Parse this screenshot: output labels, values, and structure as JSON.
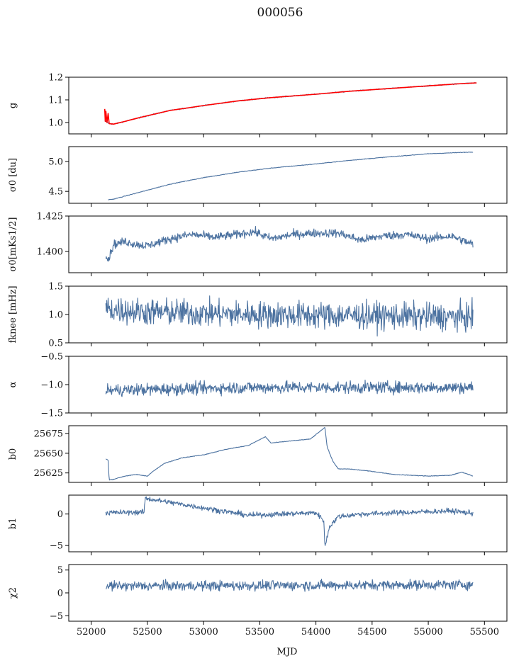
{
  "title": "000056",
  "xlabel": "MJD",
  "colors": {
    "series": "#4c72a0",
    "model": "#ff0000",
    "axes": "#000000"
  },
  "chart_data": [
    {
      "type": "line",
      "ylabel": "g",
      "ylim": [
        0.95,
        1.2
      ],
      "yticks": [
        1.0,
        1.1,
        1.2
      ],
      "ytick_labels": [
        "1.0",
        "1.1",
        "1.2"
      ],
      "xlim": [
        51800,
        55700
      ],
      "series": [
        {
          "color": "#4c72a0",
          "x": [
            52120,
            52160,
            52200,
            52300,
            52400,
            52500,
            52700,
            53000,
            53300,
            53600,
            54000,
            54300,
            54600,
            55000,
            55300,
            55430
          ],
          "y": [
            1.01,
            0.995,
            0.993,
            1.005,
            1.018,
            1.03,
            1.053,
            1.075,
            1.095,
            1.11,
            1.125,
            1.138,
            1.148,
            1.162,
            1.172,
            1.175
          ]
        },
        {
          "color": "#ff0000",
          "x": [
            52120,
            52125,
            52130,
            52140,
            52150,
            52160,
            52200,
            52300,
            52400,
            52500,
            52700,
            53000,
            53300,
            53600,
            54000,
            54300,
            54600,
            55000,
            55300,
            55430
          ],
          "y": [
            1.06,
            1.005,
            1.05,
            1.0,
            1.04,
            0.995,
            0.993,
            1.005,
            1.018,
            1.03,
            1.053,
            1.075,
            1.095,
            1.11,
            1.125,
            1.138,
            1.148,
            1.162,
            1.172,
            1.175
          ]
        }
      ]
    },
    {
      "type": "line",
      "ylabel": "σ0 [du]",
      "ylim": [
        4.3,
        5.25
      ],
      "yticks": [
        4.5,
        5.0
      ],
      "ytick_labels": [
        "4.5",
        "5.0"
      ],
      "xlim": [
        51800,
        55700
      ],
      "series": [
        {
          "color": "#4c72a0",
          "x": [
            52150,
            52200,
            52300,
            52400,
            52500,
            52700,
            53000,
            53300,
            53600,
            54000,
            54300,
            54600,
            55000,
            55400
          ],
          "y": [
            4.36,
            4.37,
            4.42,
            4.47,
            4.52,
            4.62,
            4.73,
            4.82,
            4.89,
            4.96,
            5.02,
            5.07,
            5.13,
            5.16
          ]
        }
      ]
    },
    {
      "type": "line",
      "ylabel": "σ0[mKs1/2]",
      "ylim": [
        1.385,
        1.425
      ],
      "yticks": [
        1.4,
        1.425
      ],
      "ytick_labels": [
        "1.400",
        "1.425"
      ],
      "xlim": [
        51800,
        55700
      ],
      "series": [
        {
          "color": "#4c72a0",
          "x": [
            52130,
            52150,
            52200,
            52300,
            52400,
            52500,
            52700,
            52900,
            53100,
            53300,
            53450,
            53600,
            53800,
            54000,
            54200,
            54400,
            54600,
            54800,
            55000,
            55200,
            55400
          ],
          "y": [
            1.398,
            1.394,
            1.405,
            1.407,
            1.405,
            1.404,
            1.409,
            1.412,
            1.41,
            1.412,
            1.414,
            1.409,
            1.412,
            1.413,
            1.413,
            1.408,
            1.411,
            1.412,
            1.409,
            1.411,
            1.405
          ]
        }
      ]
    },
    {
      "type": "line",
      "ylabel": "fknee [mHz]",
      "ylim": [
        0.5,
        1.5
      ],
      "yticks": [
        0.5,
        1.0,
        1.5
      ],
      "ytick_labels": [
        "0.5",
        "1.0",
        "1.5"
      ],
      "xlim": [
        51800,
        55700
      ],
      "series": [
        {
          "color": "#4c72a0",
          "x": [
            52130,
            52420,
            53400,
            54400,
            55400
          ],
          "y": [
            1.1,
            1.05,
            1.0,
            0.98,
            0.95
          ]
        }
      ]
    },
    {
      "type": "line",
      "ylabel": "α",
      "ylim": [
        -1.5,
        -0.5
      ],
      "yticks": [
        -1.5,
        -1.0,
        -0.5
      ],
      "ytick_labels": [
        "−1.5",
        "−1.0",
        "−0.5"
      ],
      "xlim": [
        51800,
        55700
      ],
      "series": [
        {
          "color": "#4c72a0",
          "x": [
            52130,
            53400,
            55400
          ],
          "y": [
            -1.1,
            -1.05,
            -1.05
          ]
        }
      ]
    },
    {
      "type": "line",
      "ylabel": "b0",
      "ylim": [
        25613,
        25685
      ],
      "yticks": [
        25625,
        25650,
        25675
      ],
      "ytick_labels": [
        "25625",
        "25650",
        "25675"
      ],
      "xlim": [
        51800,
        55700
      ],
      "series": [
        {
          "color": "#4c72a0",
          "x": [
            52130,
            52150,
            52160,
            52200,
            52300,
            52400,
            52500,
            52550,
            52650,
            52800,
            53000,
            53200,
            53400,
            53550,
            53600,
            53800,
            53950,
            54080,
            54100,
            54150,
            54200,
            54300,
            54500,
            54700,
            55000,
            55200,
            55300,
            55400
          ],
          "y": [
            25643,
            25641,
            25616,
            25617,
            25621,
            25623,
            25621,
            25627,
            25637,
            25644,
            25648,
            25655,
            25660,
            25671,
            25663,
            25666,
            25668,
            25683,
            25658,
            25640,
            25630,
            25630,
            25627,
            25623,
            25621,
            25622,
            25626,
            25621
          ]
        }
      ]
    },
    {
      "type": "line",
      "ylabel": "b1",
      "ylim": [
        -6,
        3
      ],
      "yticks": [
        -5,
        0
      ],
      "ytick_labels": [
        "−5",
        "0"
      ],
      "xlim": [
        51800,
        55700
      ],
      "series": [
        {
          "color": "#4c72a0",
          "x": [
            52130,
            52470,
            52480,
            53400,
            54000,
            54070,
            54080,
            54120,
            54200,
            54400,
            55200,
            55400
          ],
          "y": [
            0.2,
            0.3,
            2.5,
            -0.2,
            0.2,
            -1.0,
            -5.3,
            -2.0,
            -0.4,
            0.0,
            0.5,
            0.1
          ]
        }
      ]
    },
    {
      "type": "line",
      "ylabel": "χ2",
      "ylim": [
        -6.2,
        6.2
      ],
      "yticks": [
        -5,
        0,
        5
      ],
      "ytick_labels": [
        "−5",
        "0",
        "5"
      ],
      "xlim": [
        51800,
        55700
      ],
      "xticks": [
        52000,
        52500,
        53000,
        53500,
        54000,
        54500,
        55000,
        55500
      ],
      "xtick_labels": [
        "52000",
        "52500",
        "53000",
        "53500",
        "54000",
        "54500",
        "55000",
        "55500"
      ],
      "series": [
        {
          "color": "#4c72a0",
          "x": [
            52130,
            53400,
            55400
          ],
          "y": [
            1.5,
            1.6,
            1.8
          ]
        }
      ]
    }
  ]
}
